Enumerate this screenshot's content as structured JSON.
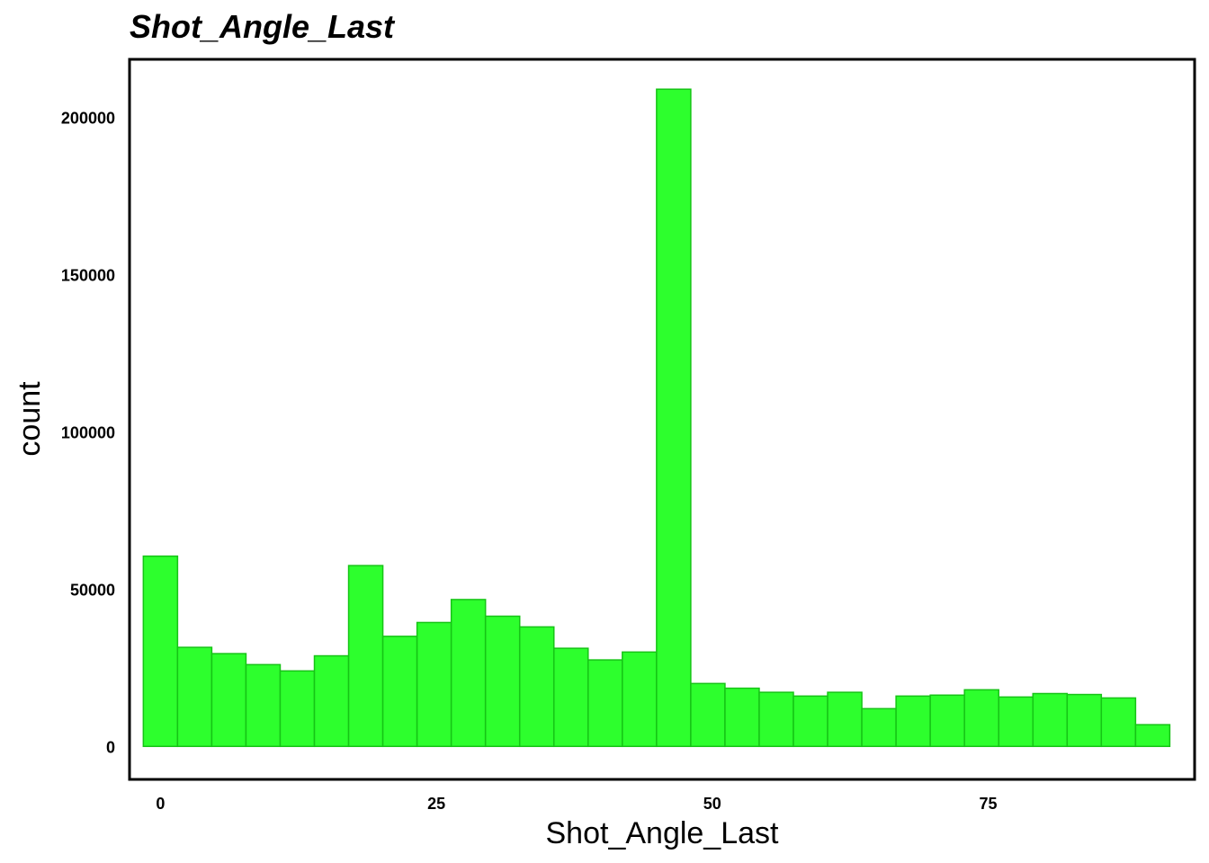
{
  "chart_data": {
    "type": "bar",
    "title": "Shot_Angle_Last",
    "xlabel": "Shot_Angle_Last",
    "ylabel": "count",
    "bar_color": "#2dff2d",
    "bar_edge_color": "#16c416",
    "xlim": [
      -2.8,
      93.7
    ],
    "ylim": [
      -10500,
      218500
    ],
    "x_ticks": [
      0,
      25,
      50,
      75
    ],
    "x_tick_labels": [
      "0",
      "25",
      "50",
      "75"
    ],
    "y_ticks": [
      0,
      50000,
      100000,
      150000,
      200000
    ],
    "y_tick_labels": [
      "0",
      "50000",
      "100000",
      "150000",
      "200000"
    ],
    "grid": false,
    "bin_width": 3.1,
    "bin_starts": [
      -1.55,
      1.55,
      4.65,
      7.75,
      10.85,
      13.95,
      17.05,
      20.15,
      23.25,
      26.35,
      29.45,
      32.55,
      35.65,
      38.75,
      41.85,
      44.95,
      48.05,
      51.15,
      54.25,
      57.35,
      60.45,
      63.55,
      66.65,
      69.75,
      72.85,
      75.95,
      79.05,
      82.15,
      85.25,
      88.35
    ],
    "values": [
      60500,
      31500,
      29500,
      26000,
      24000,
      28800,
      57500,
      35000,
      39400,
      46700,
      41400,
      38000,
      31200,
      27500,
      30000,
      209000,
      20000,
      18500,
      17200,
      16000,
      17200,
      12000,
      16000,
      16300,
      18000,
      15700,
      16800,
      16500,
      15400,
      6900
    ]
  }
}
